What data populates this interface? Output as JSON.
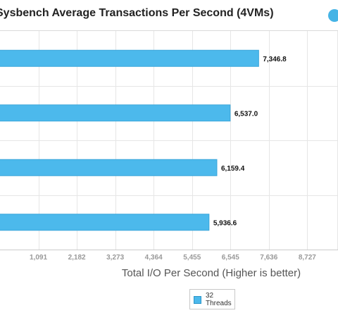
{
  "chart_data": {
    "type": "bar",
    "orientation": "horizontal",
    "title": "Sysbench Average Transactions Per Second (4VMs)",
    "xlabel": "Total I/O Per Second (Higher is better)",
    "ylabel": "",
    "xlim": [
      0,
      9818
    ],
    "x_ticks": [
      "1,091",
      "2,182",
      "3,273",
      "4,364",
      "5,455",
      "6,545",
      "7,636",
      "8,727"
    ],
    "x_tick_values": [
      1091,
      2182,
      3273,
      4364,
      5455,
      6545,
      7636,
      8727
    ],
    "categories": [
      "",
      "",
      "",
      ""
    ],
    "series": [
      {
        "name": "32 Threads",
        "values": [
          7346.8,
          6537.0,
          6159.4,
          5936.6
        ],
        "labels": [
          "7,346.8",
          "6,537.0",
          "6,159.4",
          "5,936.6"
        ],
        "color": "#4cb9ec"
      }
    ],
    "grid": true,
    "legend": "bottom"
  }
}
